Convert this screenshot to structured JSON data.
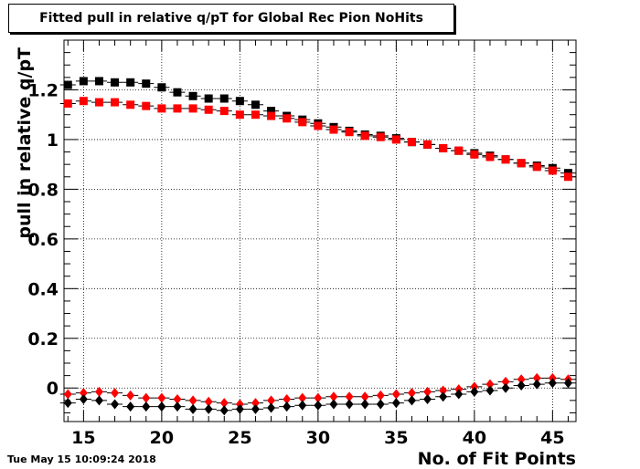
{
  "title_box": {
    "text": "Fitted pull in relative q/pT for Global Rec Pion NoHits"
  },
  "timestamp": "Tue May 15 10:09:24 2018",
  "chart_data": {
    "type": "scatter",
    "title": "Fitted pull in relative q/pT for Global Rec Pion NoHits",
    "xlabel": "No. of Fit Points",
    "ylabel": "pull in relative q/pT",
    "xlim": [
      13.75,
      46.5
    ],
    "ylim": [
      -0.135,
      1.4
    ],
    "xticks": [
      15,
      20,
      25,
      30,
      35,
      40,
      45
    ],
    "yticks": [
      0,
      0.2,
      0.4,
      0.6,
      0.8,
      1,
      1.2
    ],
    "ytick_labels": [
      "0",
      "0.2",
      "0.4",
      "0.6",
      "0.8",
      "1",
      "1.2"
    ],
    "grid": true,
    "x": [
      14,
      15,
      16,
      17,
      18,
      19,
      20,
      21,
      22,
      23,
      24,
      25,
      26,
      27,
      28,
      29,
      30,
      31,
      32,
      33,
      34,
      35,
      36,
      37,
      38,
      39,
      40,
      41,
      42,
      43,
      44,
      45,
      46
    ],
    "series": [
      {
        "color": "#000000",
        "marker": "square",
        "values": [
          1.22,
          1.235,
          1.235,
          1.23,
          1.23,
          1.225,
          1.21,
          1.19,
          1.175,
          1.165,
          1.165,
          1.155,
          1.14,
          1.115,
          1.095,
          1.08,
          1.065,
          1.05,
          1.035,
          1.02,
          1.015,
          1.005,
          0.99,
          0.98,
          0.965,
          0.955,
          0.945,
          0.935,
          0.92,
          0.905,
          0.895,
          0.885,
          0.865
        ]
      },
      {
        "color": "#ff0000",
        "marker": "square",
        "values": [
          1.145,
          1.155,
          1.15,
          1.15,
          1.14,
          1.135,
          1.125,
          1.125,
          1.125,
          1.12,
          1.115,
          1.1,
          1.1,
          1.095,
          1.085,
          1.07,
          1.055,
          1.04,
          1.03,
          1.015,
          1.01,
          1.0,
          0.99,
          0.98,
          0.965,
          0.955,
          0.94,
          0.93,
          0.92,
          0.905,
          0.89,
          0.875,
          0.85
        ]
      },
      {
        "color": "#ff0000",
        "marker": "diamond",
        "values": [
          -0.025,
          -0.02,
          -0.015,
          -0.02,
          -0.03,
          -0.04,
          -0.04,
          -0.045,
          -0.05,
          -0.055,
          -0.06,
          -0.065,
          -0.06,
          -0.05,
          -0.045,
          -0.04,
          -0.04,
          -0.035,
          -0.035,
          -0.035,
          -0.03,
          -0.025,
          -0.02,
          -0.015,
          -0.01,
          -0.005,
          0.005,
          0.015,
          0.025,
          0.035,
          0.04,
          0.04,
          0.035
        ]
      },
      {
        "color": "#000000",
        "marker": "diamond",
        "values": [
          -0.06,
          -0.045,
          -0.05,
          -0.065,
          -0.075,
          -0.075,
          -0.075,
          -0.075,
          -0.085,
          -0.085,
          -0.09,
          -0.085,
          -0.085,
          -0.08,
          -0.075,
          -0.07,
          -0.07,
          -0.065,
          -0.065,
          -0.065,
          -0.065,
          -0.06,
          -0.05,
          -0.045,
          -0.035,
          -0.025,
          -0.015,
          -0.01,
          0.0,
          0.01,
          0.015,
          0.02,
          0.02
        ]
      }
    ]
  }
}
